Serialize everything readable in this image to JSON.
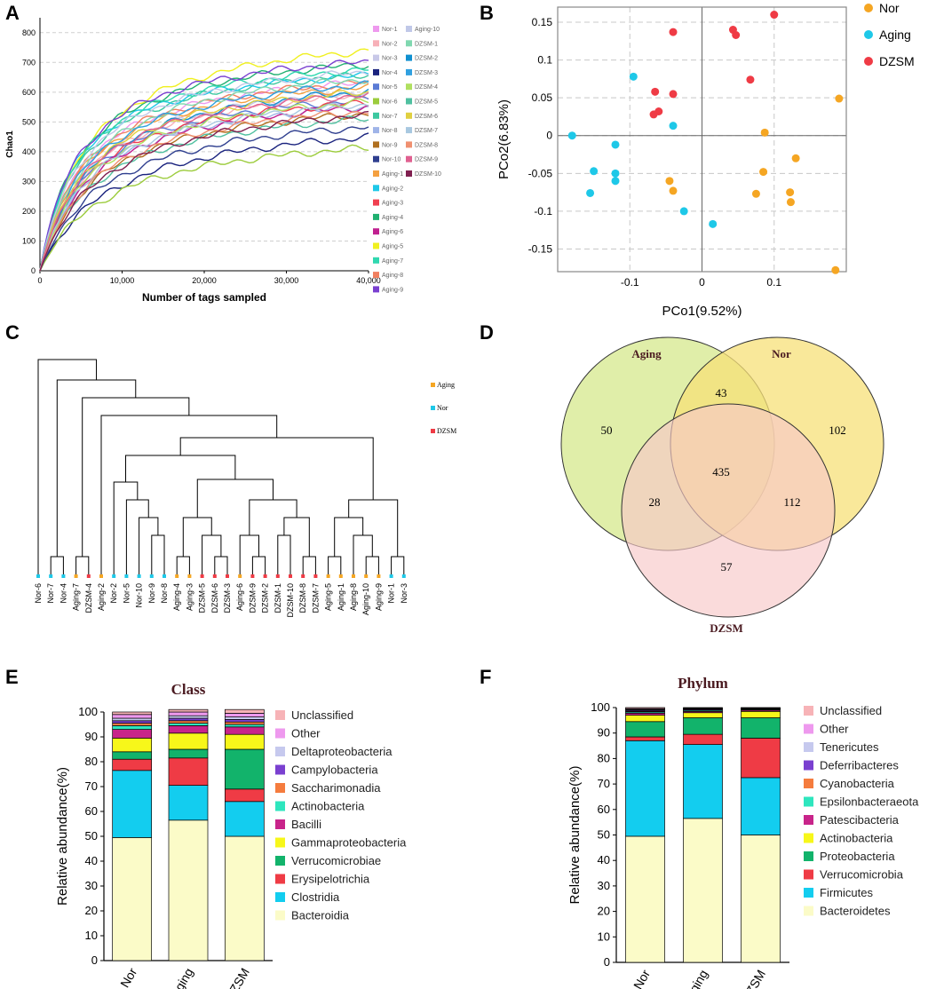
{
  "panels": {
    "A": "A",
    "B": "B",
    "C": "C",
    "D": "D",
    "E": "E",
    "F": "F"
  },
  "chart_data": [
    {
      "id": "A",
      "type": "line",
      "title": "",
      "xlabel": "Number of tags sampled",
      "ylabel": "Chao1",
      "xlim": [
        0,
        40000
      ],
      "ylim": [
        0,
        850
      ],
      "xticks": [
        0,
        10000,
        20000,
        30000,
        40000
      ],
      "xtick_labels": [
        "0",
        "10,000",
        "20,000",
        "30,000",
        "40,000"
      ],
      "yticks": [
        0,
        100,
        200,
        300,
        400,
        500,
        600,
        700,
        800
      ],
      "legend_position": "right",
      "series": [
        {
          "name": "Nor-1",
          "color": "#ee99ee",
          "asym": 720,
          "k": 5500
        },
        {
          "name": "Nor-2",
          "color": "#f7b0b8",
          "asym": 680,
          "k": 6000
        },
        {
          "name": "Nor-3",
          "color": "#c8c8e8",
          "asym": 700,
          "k": 6500
        },
        {
          "name": "Nor-4",
          "color": "#1a237e",
          "asym": 550,
          "k": 9000
        },
        {
          "name": "Nor-5",
          "color": "#5b7bd5",
          "asym": 660,
          "k": 6000
        },
        {
          "name": "Nor-6",
          "color": "#9ccc3c",
          "asym": 500,
          "k": 8500
        },
        {
          "name": "Nor-7",
          "color": "#3cc8a0",
          "asym": 740,
          "k": 5000
        },
        {
          "name": "Nor-8",
          "color": "#9fb4e8",
          "asym": 640,
          "k": 6500
        },
        {
          "name": "Nor-9",
          "color": "#b07020",
          "asym": 620,
          "k": 7000
        },
        {
          "name": "Nor-10",
          "color": "#2f3f8f",
          "asym": 580,
          "k": 8000
        },
        {
          "name": "Aging-1",
          "color": "#f4a040",
          "asym": 700,
          "k": 5500
        },
        {
          "name": "Aging-2",
          "color": "#1ec8e8",
          "asym": 730,
          "k": 4500
        },
        {
          "name": "Aging-3",
          "color": "#f04050",
          "asym": 650,
          "k": 6000
        },
        {
          "name": "Aging-4",
          "color": "#20b070",
          "asym": 780,
          "k": 5000
        },
        {
          "name": "Aging-6",
          "color": "#c02090",
          "asym": 640,
          "k": 6500
        },
        {
          "name": "Aging-5",
          "color": "#f0f020",
          "asym": 850,
          "k": 6000
        },
        {
          "name": "Aging-7",
          "color": "#30d8b0",
          "asym": 760,
          "k": 5000
        },
        {
          "name": "Aging-8",
          "color": "#f08060",
          "asym": 720,
          "k": 5500
        },
        {
          "name": "Aging-9",
          "color": "#7a40d0",
          "asym": 790,
          "k": 5000
        },
        {
          "name": "Aging-10",
          "color": "#c0c8e8",
          "asym": 760,
          "k": 5500
        },
        {
          "name": "DZSM-1",
          "color": "#80d8b0",
          "asym": 740,
          "k": 6000
        },
        {
          "name": "DZSM-2",
          "color": "#1090d0",
          "asym": 700,
          "k": 6500
        },
        {
          "name": "DZSM-3",
          "color": "#30a0e0",
          "asym": 720,
          "k": 6000
        },
        {
          "name": "DZSM-4",
          "color": "#b0e060",
          "asym": 660,
          "k": 6500
        },
        {
          "name": "DZSM-5",
          "color": "#50c0a0",
          "asym": 600,
          "k": 7000
        },
        {
          "name": "DZSM-6",
          "color": "#e0d040",
          "asym": 690,
          "k": 6000
        },
        {
          "name": "DZSM-7",
          "color": "#a8c8e0",
          "asym": 650,
          "k": 6500
        },
        {
          "name": "DZSM-8",
          "color": "#f09070",
          "asym": 630,
          "k": 7000
        },
        {
          "name": "DZSM-9",
          "color": "#e06090",
          "asym": 680,
          "k": 6000
        },
        {
          "name": "DZSM-10",
          "color": "#802050",
          "asym": 620,
          "k": 7500
        }
      ]
    },
    {
      "id": "B",
      "type": "scatter",
      "xlabel": "PCo1(9.52%)",
      "ylabel": "PCo2(6.83%)",
      "xlim": [
        -0.2,
        0.2
      ],
      "ylim": [
        -0.18,
        0.17
      ],
      "xticks": [
        -0.1,
        0,
        0.1
      ],
      "yticks": [
        0.15,
        0.1,
        0.05,
        0,
        -0.05,
        -0.1,
        -0.15
      ],
      "ytick_labels": [
        "0.15",
        "0.1",
        "0.05",
        "0",
        "-0.05",
        "-0.1",
        "-0.15"
      ],
      "legend_position": "right",
      "series": [
        {
          "name": "Nor",
          "color": "#f5a623",
          "points": [
            [
              0.19,
              0.049
            ],
            [
              0.087,
              0.004
            ],
            [
              0.13,
              -0.03
            ],
            [
              0.085,
              -0.048
            ],
            [
              0.122,
              -0.075
            ],
            [
              0.123,
              -0.088
            ],
            [
              0.075,
              -0.077
            ],
            [
              -0.045,
              -0.06
            ],
            [
              -0.04,
              -0.073
            ],
            [
              0.185,
              -0.178
            ]
          ]
        },
        {
          "name": "Aging",
          "color": "#1ec8e8",
          "points": [
            [
              -0.18,
              0.0
            ],
            [
              -0.095,
              0.078
            ],
            [
              -0.04,
              0.013
            ],
            [
              -0.12,
              -0.012
            ],
            [
              -0.15,
              -0.047
            ],
            [
              -0.12,
              -0.05
            ],
            [
              -0.12,
              -0.06
            ],
            [
              -0.155,
              -0.076
            ],
            [
              -0.025,
              -0.1
            ],
            [
              0.015,
              -0.117
            ]
          ]
        },
        {
          "name": "DZSM",
          "color": "#ef3b45",
          "points": [
            [
              -0.04,
              0.137
            ],
            [
              0.043,
              0.14
            ],
            [
              0.047,
              0.133
            ],
            [
              0.1,
              0.16
            ],
            [
              -0.065,
              0.058
            ],
            [
              -0.04,
              0.055
            ],
            [
              -0.06,
              0.032
            ],
            [
              -0.067,
              0.028
            ],
            [
              0.067,
              0.074
            ]
          ]
        }
      ]
    },
    {
      "id": "C",
      "type": "dendrogram",
      "legend": [
        {
          "name": "Aging",
          "color": "#f5a623"
        },
        {
          "name": "Nor",
          "color": "#1ec8e8"
        },
        {
          "name": "DZSM",
          "color": "#ef3b45"
        }
      ],
      "leaves": [
        {
          "label": "Nor-6",
          "group": "Nor"
        },
        {
          "label": "Nor-7",
          "group": "Nor"
        },
        {
          "label": "Nor-4",
          "group": "Nor"
        },
        {
          "label": "Aging-7",
          "group": "Aging"
        },
        {
          "label": "DZSM-4",
          "group": "DZSM"
        },
        {
          "label": "Aging-2",
          "group": "Aging"
        },
        {
          "label": "Nor-2",
          "group": "Nor"
        },
        {
          "label": "Nor-5",
          "group": "Nor"
        },
        {
          "label": "Nor-10",
          "group": "Nor"
        },
        {
          "label": "Nor-9",
          "group": "Nor"
        },
        {
          "label": "Nor-8",
          "group": "Nor"
        },
        {
          "label": "Aging-4",
          "group": "Aging"
        },
        {
          "label": "Aging-3",
          "group": "Aging"
        },
        {
          "label": "DZSM-5",
          "group": "DZSM"
        },
        {
          "label": "DZSM-6",
          "group": "DZSM"
        },
        {
          "label": "DZSM-3",
          "group": "DZSM"
        },
        {
          "label": "Aging-6",
          "group": "Aging"
        },
        {
          "label": "DZSM-9",
          "group": "DZSM"
        },
        {
          "label": "DZSM-2",
          "group": "DZSM"
        },
        {
          "label": "DZSM-1",
          "group": "DZSM"
        },
        {
          "label": "DZSM-10",
          "group": "DZSM"
        },
        {
          "label": "DZSM-8",
          "group": "DZSM"
        },
        {
          "label": "DZSM-7",
          "group": "DZSM"
        },
        {
          "label": "Aging-5",
          "group": "Aging"
        },
        {
          "label": "Aging-1",
          "group": "Aging"
        },
        {
          "label": "Aging-8",
          "group": "Aging"
        },
        {
          "label": "Aging-10",
          "group": "Aging"
        },
        {
          "label": "Aging-9",
          "group": "Aging"
        },
        {
          "label": "Nor-1",
          "group": "Nor"
        },
        {
          "label": "Nor-3",
          "group": "Nor"
        }
      ]
    },
    {
      "id": "D",
      "type": "venn",
      "sets": [
        {
          "name": "Aging",
          "color": "#d6e88c"
        },
        {
          "name": "Nor",
          "color": "#f7e078"
        },
        {
          "name": "DZSM",
          "color": "#f8c8c8"
        }
      ],
      "regions": {
        "Aging_only": 50,
        "Nor_only": 102,
        "DZSM_only": 57,
        "Aging_Nor": 43,
        "Aging_DZSM": 28,
        "Nor_DZSM": 112,
        "all": 435
      }
    },
    {
      "id": "E",
      "type": "bar",
      "stacked": true,
      "title": "Class",
      "ylabel": "Relative abundance(%)",
      "ylim": [
        0,
        100
      ],
      "yticks": [
        0,
        10,
        20,
        30,
        40,
        50,
        60,
        70,
        80,
        90,
        100
      ],
      "categories": [
        "Nor",
        "Aging",
        "DZSM"
      ],
      "series": [
        {
          "name": "Bacteroidia",
          "color": "#fbfbc8",
          "values": [
            49.5,
            56.5,
            50.0
          ]
        },
        {
          "name": "Clostridia",
          "color": "#13cdef",
          "values": [
            27.0,
            14.0,
            14.0
          ]
        },
        {
          "name": "Erysipelotrichia",
          "color": "#ef3b45",
          "values": [
            4.5,
            11.0,
            5.0
          ]
        },
        {
          "name": "Verrucomicrobiae",
          "color": "#12b36b",
          "values": [
            3.0,
            3.5,
            16.0
          ]
        },
        {
          "name": "Gammaproteobacteria",
          "color": "#f7f71a",
          "values": [
            5.5,
            6.5,
            6.0
          ]
        },
        {
          "name": "Bacilli",
          "color": "#c8248a",
          "values": [
            3.5,
            3.0,
            3.0
          ]
        },
        {
          "name": "Actinobacteria",
          "color": "#2ee6be",
          "values": [
            1.5,
            1.0,
            1.0
          ]
        },
        {
          "name": "Saccharimonadia",
          "color": "#f57c3e",
          "values": [
            1.0,
            1.0,
            1.0
          ]
        },
        {
          "name": "Campylobacteria",
          "color": "#7a40d0",
          "values": [
            1.0,
            1.0,
            1.0
          ]
        },
        {
          "name": "Deltaproteobacteria",
          "color": "#c6c9ee",
          "values": [
            1.0,
            1.0,
            1.0
          ]
        },
        {
          "name": "Other",
          "color": "#ee99ee",
          "values": [
            1.5,
            1.5,
            1.5
          ]
        },
        {
          "name": "Unclassified",
          "color": "#f7b3b7",
          "values": [
            1.0,
            1.0,
            1.5
          ]
        }
      ]
    },
    {
      "id": "F",
      "type": "bar",
      "stacked": true,
      "title": "Phylum",
      "ylabel": "Relative abundance(%)",
      "ylim": [
        0,
        100
      ],
      "yticks": [
        0,
        10,
        20,
        30,
        40,
        50,
        60,
        70,
        80,
        90,
        100
      ],
      "categories": [
        "Nor",
        "Aging",
        "DZSM"
      ],
      "series": [
        {
          "name": "Bacteroidetes",
          "color": "#fbfbc8",
          "values": [
            49.5,
            56.5,
            50.0
          ]
        },
        {
          "name": "Firmicutes",
          "color": "#13cdef",
          "values": [
            37.5,
            29.0,
            22.5
          ]
        },
        {
          "name": "Verrucomicrobia",
          "color": "#ef3b45",
          "values": [
            1.5,
            4.0,
            15.5
          ]
        },
        {
          "name": "Proteobacteria",
          "color": "#12b36b",
          "values": [
            6.0,
            6.5,
            8.0
          ]
        },
        {
          "name": "Actinobacteria",
          "color": "#f7f71a",
          "values": [
            2.5,
            2.0,
            2.5
          ]
        },
        {
          "name": "Patescibacteria",
          "color": "#c8248a",
          "values": [
            0.8,
            0.5,
            0.5
          ]
        },
        {
          "name": "Epsilonbacteraeota",
          "color": "#2ee6be",
          "values": [
            0.5,
            0.4,
            0.3
          ]
        },
        {
          "name": "Cyanobacteria",
          "color": "#f57c3e",
          "values": [
            0.3,
            0.2,
            0.2
          ]
        },
        {
          "name": "Deferribacteres",
          "color": "#7a40d0",
          "values": [
            0.4,
            0.3,
            0.2
          ]
        },
        {
          "name": "Tenericutes",
          "color": "#c6c9ee",
          "values": [
            0.3,
            0.2,
            0.1
          ]
        },
        {
          "name": "Other",
          "color": "#ee99ee",
          "values": [
            0.3,
            0.2,
            0.1
          ]
        },
        {
          "name": "Unclassified",
          "color": "#f7b3b7",
          "values": [
            0.4,
            0.2,
            0.1
          ]
        }
      ]
    }
  ]
}
